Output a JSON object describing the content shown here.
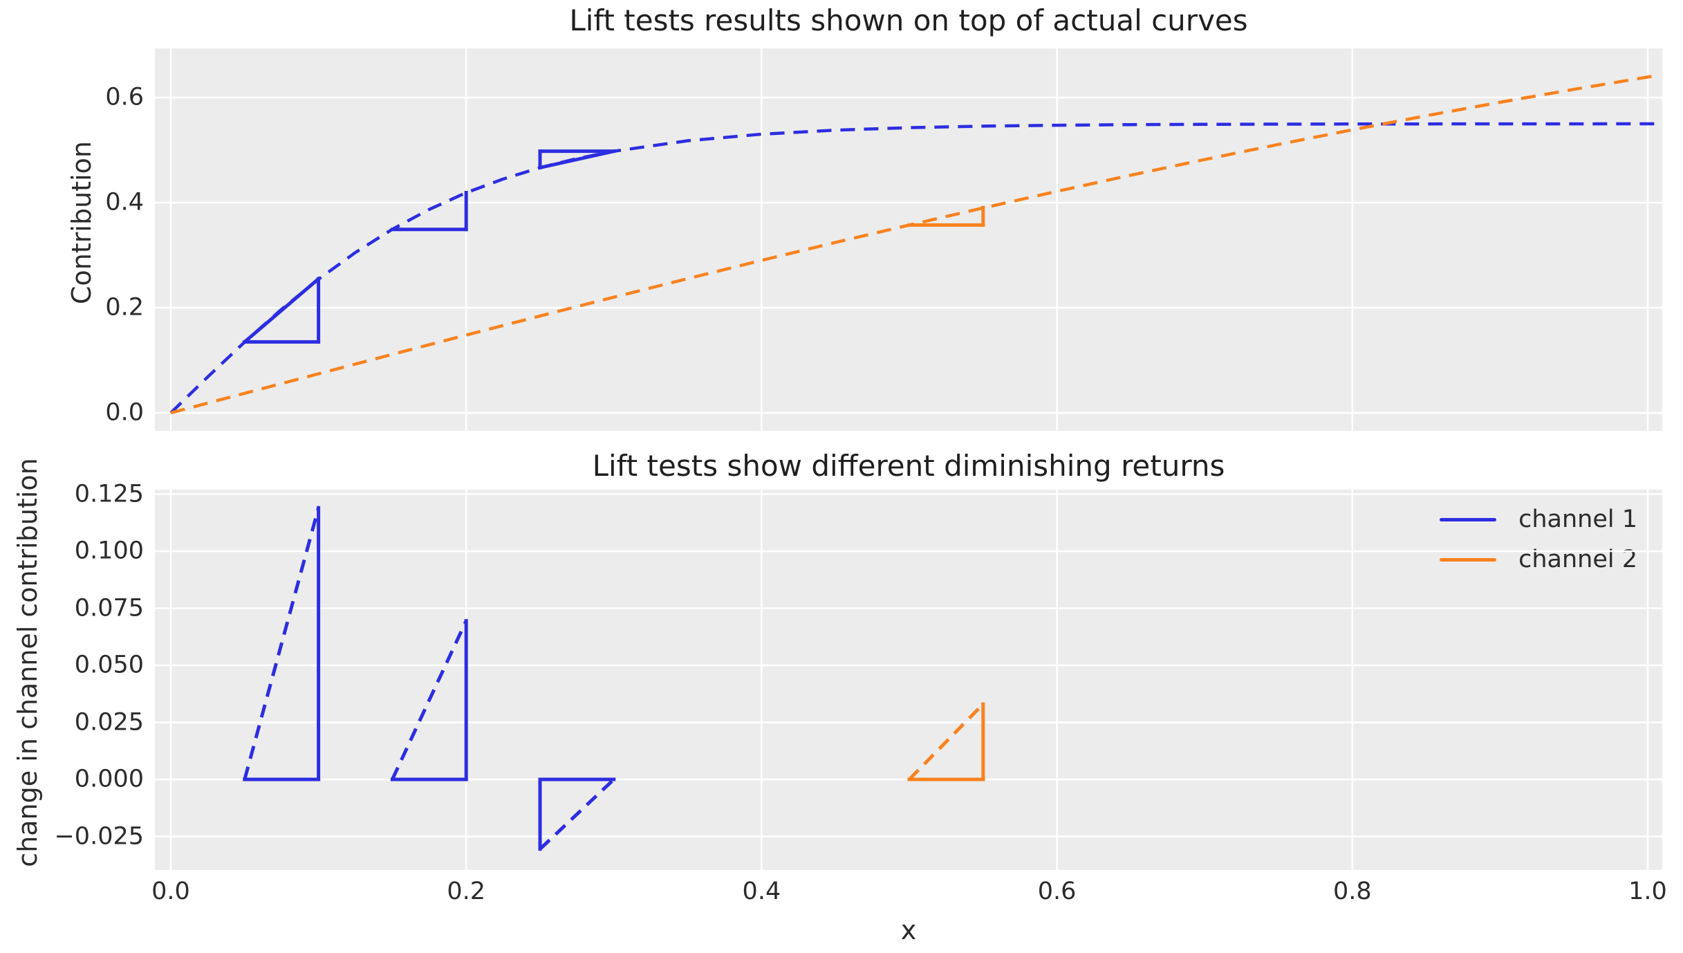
{
  "figure": {
    "colors": {
      "channel1": "#2d2de1",
      "channel2": "#f8821f",
      "axes_bg": "#ececec",
      "grid": "#ffffff",
      "text": "#2b2b2b"
    }
  },
  "chart_data": [
    {
      "type": "line",
      "title": "Lift tests results shown on top of actual curves",
      "ylabel": "Contribution",
      "xlabel": "",
      "xlim": [
        -0.011,
        1.011
      ],
      "ylim": [
        -0.034,
        0.693
      ],
      "grid": true,
      "legend_position": "none",
      "show_xtick_labels": false,
      "xticks": [
        {
          "v": 0.0,
          "label": "0.0"
        },
        {
          "v": 0.2,
          "label": "0.2"
        },
        {
          "v": 0.4,
          "label": "0.4"
        },
        {
          "v": 0.6,
          "label": "0.6"
        },
        {
          "v": 0.8,
          "label": "0.8"
        },
        {
          "v": 1.0,
          "label": "1.0"
        }
      ],
      "yticks": [
        {
          "v": 0.0,
          "label": "0.0"
        },
        {
          "v": 0.2,
          "label": "0.2"
        },
        {
          "v": 0.4,
          "label": "0.4"
        },
        {
          "v": 0.6,
          "label": "0.6"
        }
      ],
      "series": [
        {
          "name": "channel 1",
          "color": "#2d2de1",
          "style": "dashed",
          "x": [
            0,
            0.025,
            0.05,
            0.075,
            0.1,
            0.125,
            0.15,
            0.175,
            0.2,
            0.225,
            0.25,
            0.275,
            0.3,
            0.35,
            0.4,
            0.45,
            0.5,
            0.55,
            0.6,
            0.65,
            0.7,
            0.75,
            0.8,
            0.85,
            0.9,
            0.95,
            1.0,
            1.008
          ],
          "y": [
            0,
            0.0684,
            0.1347,
            0.1971,
            0.2542,
            0.3051,
            0.3493,
            0.3871,
            0.4189,
            0.4449,
            0.4666,
            0.4838,
            0.4978,
            0.5178,
            0.5302,
            0.5379,
            0.5426,
            0.5455,
            0.5473,
            0.5484,
            0.549,
            0.5494,
            0.5496,
            0.5498,
            0.5499,
            0.5499,
            0.55,
            0.55
          ]
        },
        {
          "name": "channel 2",
          "color": "#f8821f",
          "style": "dashed",
          "x": [
            0,
            0.05,
            0.1,
            0.15,
            0.2,
            0.25,
            0.3,
            0.35,
            0.4,
            0.45,
            0.5,
            0.55,
            0.6,
            0.65,
            0.7,
            0.75,
            0.8,
            0.85,
            0.9,
            0.95,
            1.0,
            1.008
          ],
          "y": [
            0,
            0.0372,
            0.0744,
            0.1113,
            0.148,
            0.1843,
            0.2201,
            0.2554,
            0.2901,
            0.3242,
            0.3574,
            0.3899,
            0.4215,
            0.4523,
            0.482,
            0.5108,
            0.5385,
            0.5653,
            0.5909,
            0.6155,
            0.639,
            0.6426
          ]
        }
      ],
      "lift_tests": [
        {
          "channel": "channel 1",
          "color": "#2d2de1",
          "x_start": 0.05,
          "x_end": 0.1,
          "y_start": 0.135,
          "delta_y": 0.12,
          "segments": [
            [
              0.05,
              0.135,
              0.1,
              0.135,
              "solid"
            ],
            [
              0.1,
              0.135,
              0.1,
              0.255,
              "solid"
            ],
            [
              0.05,
              0.135,
              0.1,
              0.255,
              "solid"
            ]
          ]
        },
        {
          "channel": "channel 1",
          "color": "#2d2de1",
          "x_start": 0.15,
          "x_end": 0.2,
          "y_start": 0.349,
          "delta_y": 0.07,
          "segments": [
            [
              0.15,
              0.349,
              0.2,
              0.349,
              "solid"
            ],
            [
              0.2,
              0.349,
              0.2,
              0.419,
              "solid"
            ]
          ]
        },
        {
          "channel": "channel 1",
          "color": "#2d2de1",
          "x_start": 0.25,
          "x_end": 0.3,
          "y_start": 0.4666,
          "delta_y": -0.03,
          "segments": [
            [
              0.25,
              0.4666,
              0.25,
              0.4978,
              "solid"
            ],
            [
              0.25,
              0.4978,
              0.3,
              0.4978,
              "solid"
            ],
            [
              0.25,
              0.4666,
              0.3,
              0.4978,
              "solid"
            ]
          ]
        },
        {
          "channel": "channel 2",
          "color": "#f8821f",
          "x_start": 0.5,
          "x_end": 0.55,
          "y_start": 0.3574,
          "delta_y": 0.033,
          "segments": [
            [
              0.5,
              0.3574,
              0.55,
              0.3574,
              "solid"
            ],
            [
              0.55,
              0.3574,
              0.55,
              0.3905,
              "solid"
            ]
          ]
        }
      ]
    },
    {
      "type": "line",
      "title": "Lift tests show different diminishing returns",
      "ylabel": "change in channel contribution",
      "xlabel": "x",
      "xlim": [
        -0.011,
        1.011
      ],
      "ylim": [
        -0.0397,
        0.127
      ],
      "grid": true,
      "legend_position": "upper right",
      "show_xtick_labels": true,
      "xticks": [
        {
          "v": 0.0,
          "label": "0.0"
        },
        {
          "v": 0.2,
          "label": "0.2"
        },
        {
          "v": 0.4,
          "label": "0.4"
        },
        {
          "v": 0.6,
          "label": "0.6"
        },
        {
          "v": 0.8,
          "label": "0.8"
        },
        {
          "v": 1.0,
          "label": "1.0"
        }
      ],
      "yticks": [
        {
          "v": -0.025,
          "label": "−0.025"
        },
        {
          "v": 0.0,
          "label": "0.000"
        },
        {
          "v": 0.025,
          "label": "0.025"
        },
        {
          "v": 0.05,
          "label": "0.050"
        },
        {
          "v": 0.075,
          "label": "0.075"
        },
        {
          "v": 0.1,
          "label": "0.100"
        },
        {
          "v": 0.125,
          "label": "0.125"
        }
      ],
      "series": [],
      "lift_tests": [
        {
          "channel": "channel 1",
          "color": "#2d2de1",
          "x_start": 0.05,
          "x_end": 0.1,
          "delta_y": 0.12,
          "segments": [
            [
              0.05,
              0,
              0.1,
              0,
              "solid"
            ],
            [
              0.1,
              0,
              0.1,
              0.119,
              "solid"
            ],
            [
              0.05,
              0,
              0.1,
              0.119,
              "dashed"
            ]
          ]
        },
        {
          "channel": "channel 1",
          "color": "#2d2de1",
          "x_start": 0.15,
          "x_end": 0.2,
          "delta_y": 0.07,
          "segments": [
            [
              0.15,
              0,
              0.2,
              0,
              "solid"
            ],
            [
              0.2,
              0,
              0.2,
              0.0695,
              "solid"
            ],
            [
              0.15,
              0,
              0.2,
              0.0695,
              "dashed"
            ]
          ]
        },
        {
          "channel": "channel 1",
          "color": "#2d2de1",
          "x_start": 0.25,
          "x_end": 0.3,
          "delta_y": -0.03,
          "segments": [
            [
              0.25,
              0,
              0.3,
              0,
              "solid"
            ],
            [
              0.25,
              -0.0305,
              0.25,
              0,
              "solid"
            ],
            [
              0.25,
              -0.0305,
              0.3,
              0,
              "dashed"
            ]
          ]
        },
        {
          "channel": "channel 2",
          "color": "#f8821f",
          "x_start": 0.5,
          "x_end": 0.55,
          "delta_y": 0.033,
          "segments": [
            [
              0.5,
              0,
              0.55,
              0,
              "solid"
            ],
            [
              0.55,
              0,
              0.55,
              0.033,
              "solid"
            ],
            [
              0.5,
              0,
              0.55,
              0.033,
              "dashed"
            ]
          ]
        }
      ],
      "legend": [
        {
          "label": "channel 1",
          "color": "#2d2de1"
        },
        {
          "label": "channel 2",
          "color": "#f8821f"
        }
      ]
    }
  ]
}
